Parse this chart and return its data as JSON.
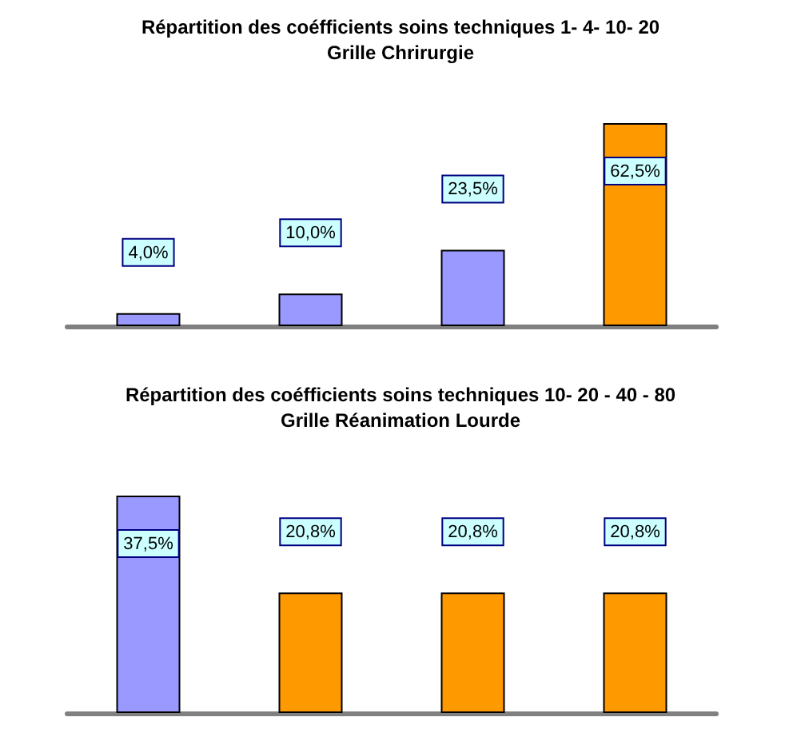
{
  "chart_data": [
    {
      "type": "bar",
      "title": "Répartition des coéfficients soins techniques 1- 4- 10- 20",
      "subtitle": "Grille Chrirurgie",
      "categories": [
        null,
        null,
        null,
        null
      ],
      "values": [
        4.0,
        10.0,
        23.5,
        62.5
      ],
      "colors": [
        "#9999ff",
        "#9999ff",
        "#9999ff",
        "#ff9900"
      ],
      "value_labels": [
        "4,0%",
        "10,0%",
        "23,5%",
        "62,5%"
      ]
    },
    {
      "type": "bar",
      "title": "Répartition des coéfficients soins techniques 10- 20 - 40 - 80",
      "subtitle": "Grille Réanimation Lourde",
      "categories": [
        null,
        null,
        null,
        null
      ],
      "values": [
        37.5,
        20.8,
        20.8,
        20.8
      ],
      "colors": [
        "#9999ff",
        "#ff9900",
        "#ff9900",
        "#ff9900"
      ],
      "value_labels": [
        "37,5%",
        "20,8%",
        "20,8%",
        "20,8%"
      ]
    }
  ]
}
